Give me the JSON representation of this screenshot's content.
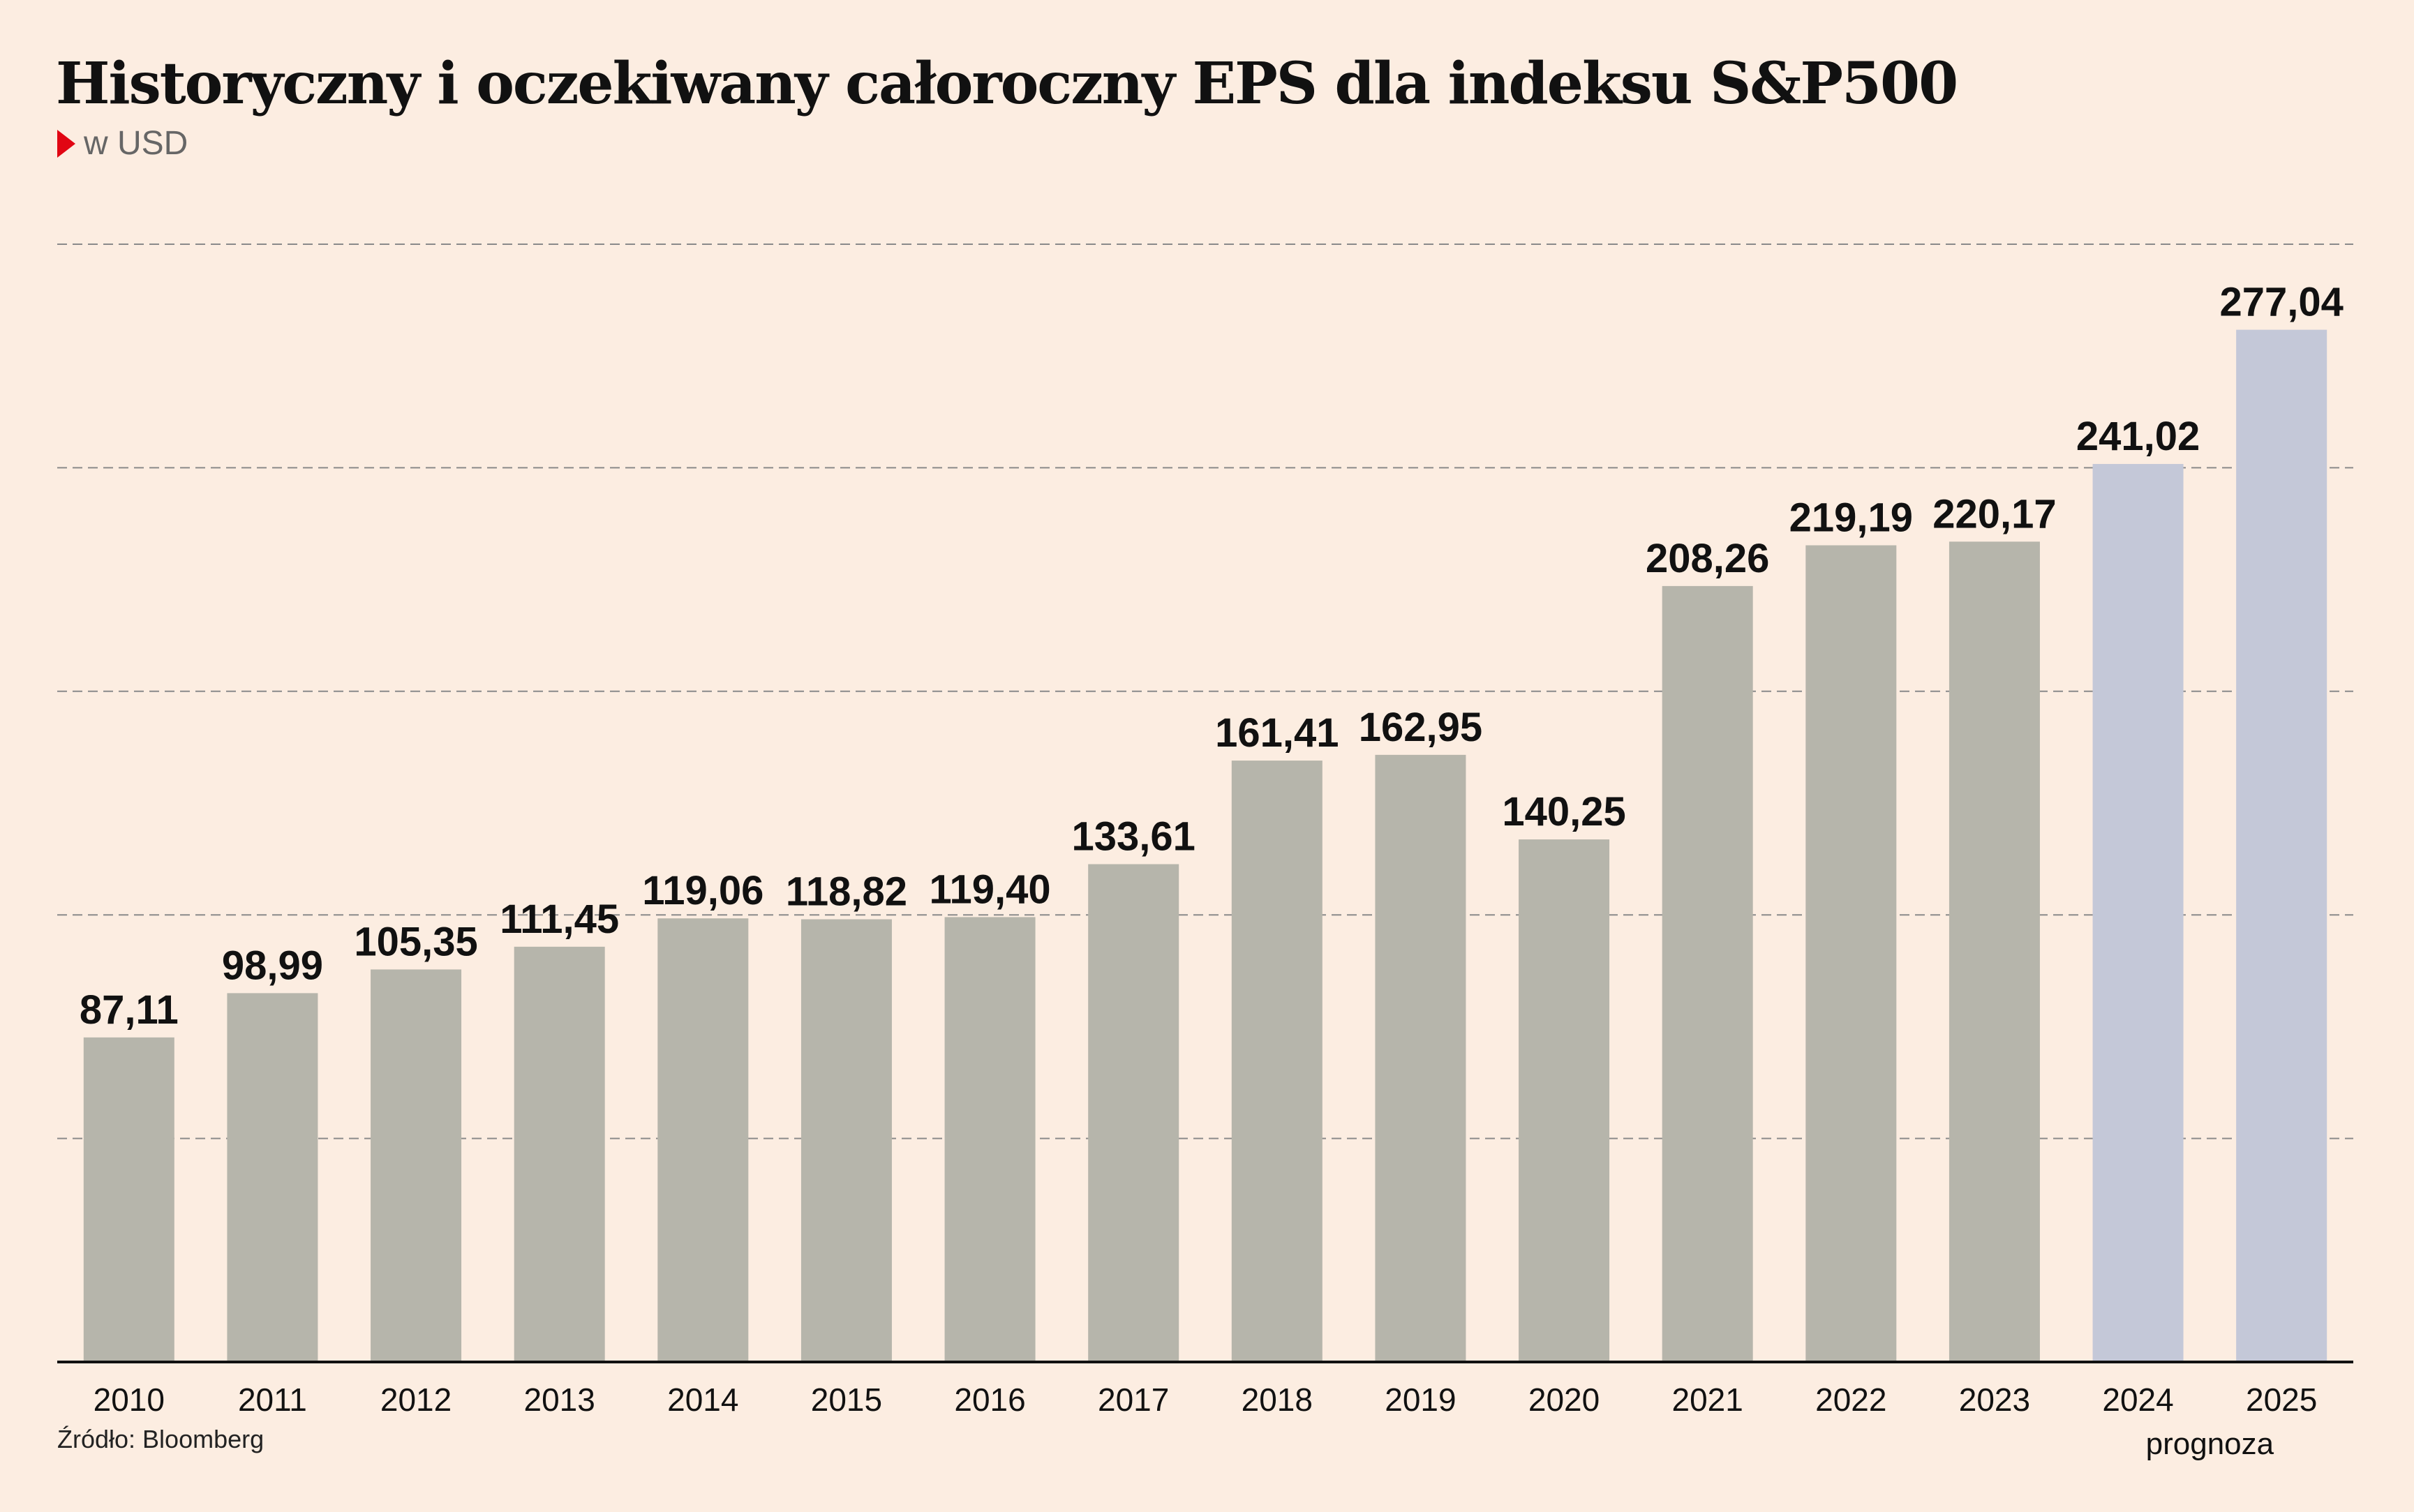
{
  "title": "Historyczny i oczekiwany całoroczny EPS dla indeksu S&P500",
  "subtitle": "w USD",
  "source": "Źródło: Bloomberg",
  "colors": {
    "background": "#fcede1",
    "historical_bar": "#b6b5ab",
    "forecast_bar": "#c4c8d8",
    "subtitle_marker": "#e10613",
    "gridline": "#8a8a8a",
    "axis": "#111111"
  },
  "chart_data": {
    "type": "bar",
    "categories": [
      "2010",
      "2011",
      "2012",
      "2013",
      "2014",
      "2015",
      "2016",
      "2017",
      "2018",
      "2019",
      "2020",
      "2021",
      "2022",
      "2023",
      "2024",
      "2025"
    ],
    "values": [
      87.11,
      98.99,
      105.35,
      111.45,
      119.06,
      118.82,
      119.4,
      133.61,
      161.41,
      162.95,
      140.25,
      208.26,
      219.19,
      220.17,
      241.02,
      277.04
    ],
    "data_labels": [
      "87,11",
      "98,99",
      "105,35",
      "111,45",
      "119,06",
      "118,82",
      "119,40",
      "133,61",
      "161,41",
      "162,95",
      "140,25",
      "208,26",
      "219,19",
      "220,17",
      "241,02",
      "277,04"
    ],
    "forecast_from": "2024",
    "forecast_note": "prognoza",
    "ylim": [
      0,
      300
    ],
    "gridlines": [
      60,
      120,
      180,
      240,
      300
    ],
    "grid": "dashed horizontal",
    "legend": "none",
    "xlabel": "",
    "ylabel": ""
  }
}
